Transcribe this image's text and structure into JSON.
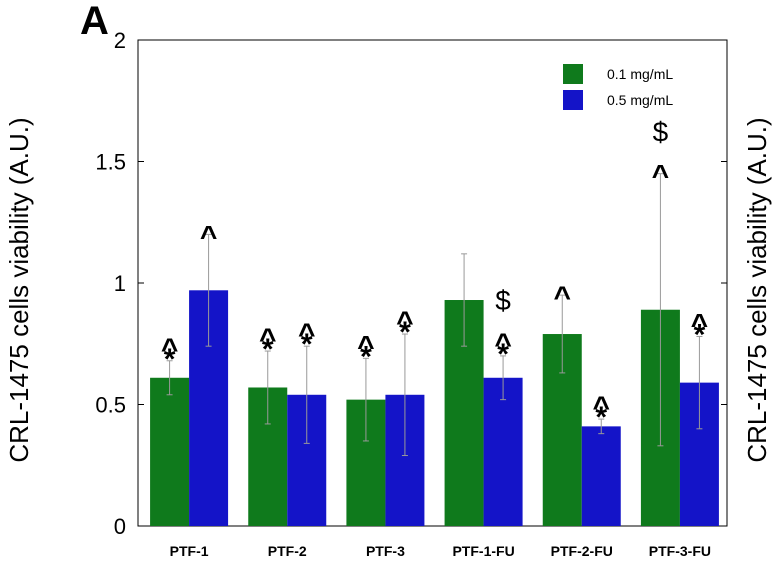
{
  "chart_data": {
    "type": "bar",
    "panel_label": "A",
    "categories": [
      "PTF-1",
      "PTF-2",
      "PTF-3",
      "PTF-1-FU",
      "PTF-2-FU",
      "PTF-3-FU"
    ],
    "ylabel": "CRL-1475 cells viability (A.U.)",
    "ylabel_right": "CRL-1475 cells viability (A.U.)",
    "ylim": [
      0,
      2
    ],
    "yticks": [
      "0",
      "0.5",
      "1",
      "1.5",
      "2"
    ],
    "ytick_values": [
      0,
      0.5,
      1,
      1.5,
      2
    ],
    "legend_position": "top-right",
    "grid": false,
    "series": [
      {
        "name": "0.1 mg/mL",
        "color": "#0f7a1c",
        "values": [
          0.61,
          0.57,
          0.52,
          0.93,
          0.79,
          0.89
        ],
        "errors": [
          0.07,
          0.15,
          0.17,
          0.19,
          0.16,
          0.56
        ],
        "annotations": [
          [
            "^",
            "*"
          ],
          [
            "^",
            "*"
          ],
          [
            "^",
            "*"
          ],
          [],
          [
            "^"
          ],
          [
            "$",
            "^"
          ]
        ]
      },
      {
        "name": "0.5 mg/mL",
        "color": "#1414c8",
        "values": [
          0.97,
          0.54,
          0.54,
          0.61,
          0.41,
          0.59
        ],
        "errors": [
          0.23,
          0.2,
          0.25,
          0.09,
          0.03,
          0.19
        ],
        "annotations": [
          [
            "^"
          ],
          [
            "^",
            "*"
          ],
          [
            "^",
            "*"
          ],
          [
            "$",
            "^",
            "*"
          ],
          [
            "^",
            "*"
          ],
          [
            "^",
            "*"
          ]
        ]
      }
    ]
  }
}
